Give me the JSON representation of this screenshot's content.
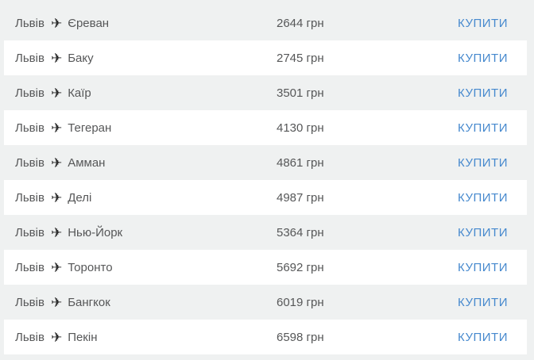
{
  "colors": {
    "page_background": "#eff1f1",
    "row_highlight": "#ffffff",
    "text": "#565758",
    "plane_icon": "#2f2f2f",
    "buy_link": "#4689ce"
  },
  "icons": {
    "airplane": "✈"
  },
  "list": {
    "origin": "Львів",
    "buy_label": "КУПИТИ",
    "rows": [
      {
        "from": "Львів",
        "to": "Єреван",
        "price": "2644 грн",
        "buy": "КУПИТИ"
      },
      {
        "from": "Львів",
        "to": "Баку",
        "price": "2745 грн",
        "buy": "КУПИТИ"
      },
      {
        "from": "Львів",
        "to": "Каїр",
        "price": "3501 грн",
        "buy": "КУПИТИ"
      },
      {
        "from": "Львів",
        "to": "Тегеран",
        "price": "4130 грн",
        "buy": "КУПИТИ"
      },
      {
        "from": "Львів",
        "to": "Амман",
        "price": "4861 грн",
        "buy": "КУПИТИ"
      },
      {
        "from": "Львів",
        "to": "Делі",
        "price": "4987 грн",
        "buy": "КУПИТИ"
      },
      {
        "from": "Львів",
        "to": "Нью-Йорк",
        "price": "5364 грн",
        "buy": "КУПИТИ"
      },
      {
        "from": "Львів",
        "to": "Торонто",
        "price": "5692 грн",
        "buy": "КУПИТИ"
      },
      {
        "from": "Львів",
        "to": "Бангкок",
        "price": "6019 грн",
        "buy": "КУПИТИ"
      },
      {
        "from": "Львів",
        "to": "Пекін",
        "price": "6598 грн",
        "buy": "КУПИТИ"
      }
    ]
  }
}
